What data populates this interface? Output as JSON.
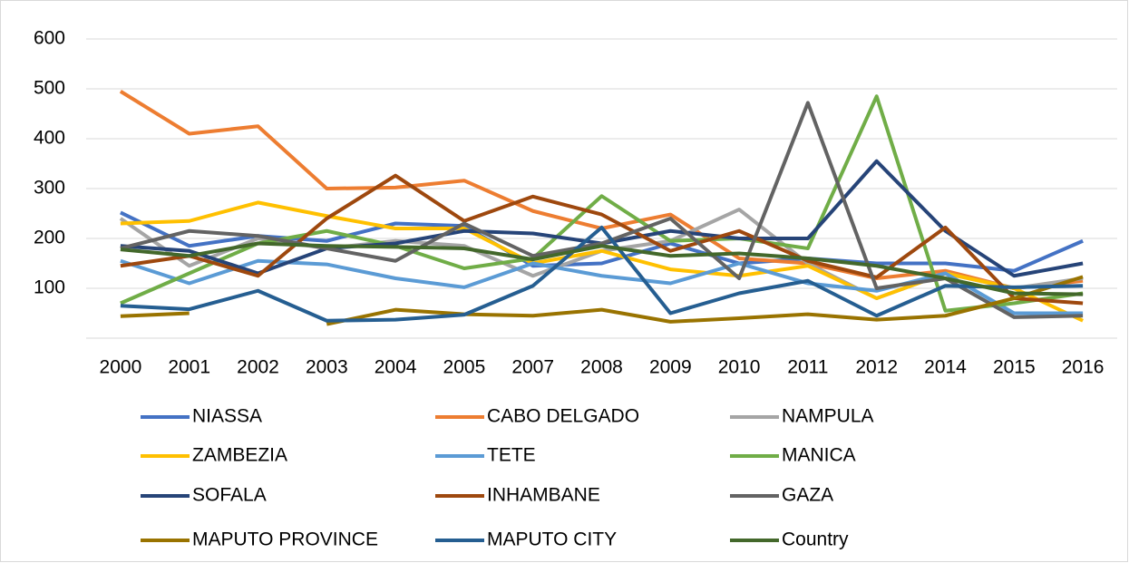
{
  "chart_data": {
    "type": "line",
    "categories": [
      "2000",
      "2001",
      "2002",
      "2003",
      "2004",
      "2005",
      "2007",
      "2008",
      "2009",
      "2010",
      "2011",
      "2012",
      "2014",
      "2015",
      "2016"
    ],
    "series": [
      {
        "name": "NIASSA",
        "color": "#4472c4",
        "values": [
          252,
          185,
          205,
          195,
          230,
          225,
          145,
          150,
          190,
          150,
          160,
          150,
          150,
          135,
          195
        ]
      },
      {
        "name": "CABO DELGADO",
        "color": "#ed7d31",
        "values": [
          495,
          410,
          425,
          300,
          302,
          316,
          255,
          220,
          248,
          160,
          150,
          120,
          135,
          100,
          115
        ]
      },
      {
        "name": "NAMPULA",
        "color": "#a5a5a5",
        "values": [
          240,
          145,
          200,
          180,
          195,
          185,
          125,
          175,
          195,
          258,
          150,
          80,
          130,
          100,
          120
        ]
      },
      {
        "name": "ZAMBEZIA",
        "color": "#ffc000",
        "values": [
          230,
          235,
          272,
          245,
          220,
          220,
          150,
          175,
          138,
          125,
          145,
          80,
          130,
          100,
          35
        ]
      },
      {
        "name": "TETE",
        "color": "#5b9bd5",
        "values": [
          155,
          110,
          155,
          148,
          120,
          102,
          150,
          125,
          110,
          150,
          110,
          95,
          130,
          50,
          50
        ]
      },
      {
        "name": "MANICA",
        "color": "#70ad47",
        "values": [
          70,
          130,
          190,
          215,
          185,
          140,
          160,
          285,
          195,
          200,
          180,
          485,
          55,
          70,
          90
        ]
      },
      {
        "name": "SOFALA",
        "color": "#264478",
        "values": [
          185,
          175,
          130,
          180,
          190,
          215,
          210,
          190,
          215,
          200,
          200,
          355,
          215,
          125,
          150
        ]
      },
      {
        "name": "INHAMBANE",
        "color": "#9e480e",
        "values": [
          145,
          165,
          125,
          240,
          326,
          235,
          284,
          248,
          175,
          215,
          155,
          122,
          222,
          80,
          70
        ]
      },
      {
        "name": "GAZA",
        "color": "#636363",
        "values": [
          180,
          215,
          205,
          180,
          155,
          230,
          165,
          190,
          240,
          120,
          472,
          100,
          120,
          42,
          45
        ]
      },
      {
        "name": "MAPUTO PROVINCE",
        "color": "#997300",
        "values": [
          44,
          50,
          null,
          28,
          57,
          48,
          45,
          57,
          33,
          40,
          48,
          37,
          45,
          80,
          123
        ]
      },
      {
        "name": "MAPUTO CITY",
        "color": "#255e91",
        "values": [
          65,
          58,
          95,
          35,
          37,
          47,
          105,
          222,
          50,
          90,
          115,
          45,
          105,
          102,
          105
        ]
      },
      {
        "name": "Country",
        "color": "#43682b",
        "values": [
          178,
          165,
          190,
          185,
          183,
          180,
          158,
          185,
          165,
          170,
          160,
          145,
          120,
          90,
          88
        ]
      }
    ],
    "ylim": [
      0,
      600
    ],
    "yticks": [
      100,
      200,
      300,
      400,
      500,
      600
    ],
    "grid": true,
    "legend": "bottom"
  }
}
